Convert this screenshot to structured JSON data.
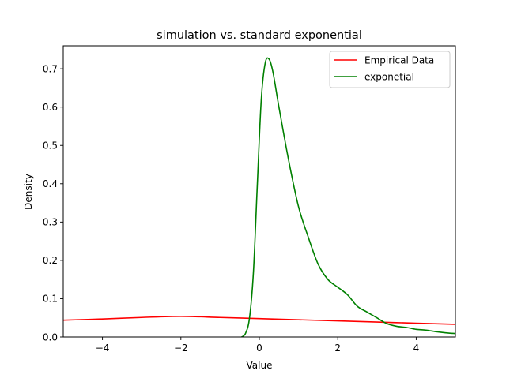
{
  "chart_data": {
    "type": "line",
    "title": "simulation vs. standard exponential",
    "xlabel": "Value",
    "ylabel": "Density",
    "xlim": [
      -5,
      5
    ],
    "ylim": [
      0,
      0.76
    ],
    "xticks": [
      -4,
      -2,
      0,
      2,
      4
    ],
    "xtick_labels": [
      "−4",
      "−2",
      "0",
      "2",
      "4"
    ],
    "yticks": [
      0.0,
      0.1,
      0.2,
      0.3,
      0.4,
      0.5,
      0.6,
      0.7
    ],
    "ytick_labels": [
      "0.0",
      "0.1",
      "0.2",
      "0.3",
      "0.4",
      "0.5",
      "0.6",
      "0.7"
    ],
    "grid": false,
    "legend_position": "top-right",
    "series": [
      {
        "name": "Empirical Data",
        "color": "#ff0000",
        "x": [
          -5.0,
          -4.0,
          -3.0,
          -2.0,
          -1.0,
          0.0,
          1.0,
          2.0,
          3.0,
          4.0,
          5.0
        ],
        "y": [
          0.044,
          0.047,
          0.051,
          0.054,
          0.051,
          0.048,
          0.045,
          0.042,
          0.039,
          0.036,
          0.033
        ]
      },
      {
        "name": "exponetial",
        "color": "#008000",
        "x": [
          -0.45,
          -0.35,
          -0.25,
          -0.15,
          -0.05,
          0.05,
          0.15,
          0.25,
          0.35,
          0.5,
          0.75,
          1.0,
          1.25,
          1.5,
          1.75,
          2.0,
          2.25,
          2.5,
          2.75,
          3.0,
          3.25,
          3.5,
          3.75,
          4.0,
          4.25,
          4.5,
          4.75,
          5.0
        ],
        "y": [
          0.0,
          0.01,
          0.05,
          0.17,
          0.4,
          0.62,
          0.715,
          0.725,
          0.69,
          0.6,
          0.46,
          0.34,
          0.26,
          0.19,
          0.15,
          0.13,
          0.11,
          0.08,
          0.065,
          0.05,
          0.035,
          0.028,
          0.025,
          0.02,
          0.018,
          0.014,
          0.011,
          0.009
        ]
      }
    ]
  }
}
